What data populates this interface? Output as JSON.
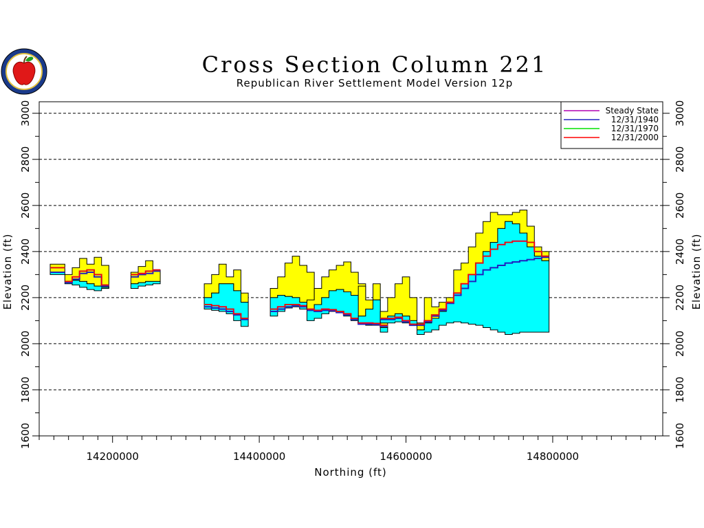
{
  "chart_data": {
    "type": "area",
    "title": "Cross Section  Column  221",
    "subtitle": "Republican  River  Settlement  Model  Version  12p",
    "xlabel": "Northing  (ft)",
    "ylabel": "Elevation  (ft)",
    "ylabel_right": "Elevation  (ft)",
    "xlim": [
      14100000,
      14950000
    ],
    "ylim": [
      1600,
      3050
    ],
    "x_ticks": [
      14200000,
      14400000,
      14600000,
      14800000
    ],
    "x_tick_labels": [
      "14200000",
      "14400000",
      "14600000",
      "14800000"
    ],
    "y_ticks": [
      1600,
      1800,
      2000,
      2200,
      2400,
      2600,
      2800,
      3000
    ],
    "y_tick_labels": [
      "1600",
      "1800",
      "2000",
      "2200",
      "2400",
      "2600",
      "2800",
      "3000"
    ],
    "grid": "horizontal dashed",
    "legend_position": "top-right",
    "colors": {
      "upper_layer": "#ffff00",
      "aquifer": "#00ffff",
      "steady_state": "#b000b0",
      "y1940": "#2020c0",
      "y1970": "#00e000",
      "y2000": "#ff0000"
    },
    "legend": [
      {
        "name": "Steady  State",
        "color": "#b000b0"
      },
      {
        "name": "12/31/1940",
        "color": "#2020c0"
      },
      {
        "name": "12/31/1970",
        "color": "#00e000"
      },
      {
        "name": "12/31/2000",
        "color": "#ff0000"
      }
    ],
    "segments": [
      {
        "x": [
          14120000,
          14130000
        ],
        "top": [
          2345,
          2345
        ],
        "mid": [
          2310,
          2310
        ],
        "bot": [
          2300,
          2300
        ],
        "wl": [
          2330,
          2330
        ],
        "wl1940": [
          2310,
          2310
        ]
      },
      {
        "x": [
          14140000,
          14150000,
          14160000,
          14170000,
          14180000,
          14190000
        ],
        "top": [
          2300,
          2330,
          2370,
          2345,
          2375,
          2340
        ],
        "mid": [
          2270,
          2275,
          2270,
          2260,
          2250,
          2245
        ],
        "bot": [
          2260,
          2255,
          2245,
          2235,
          2230,
          2240
        ],
        "wl": [
          2270,
          2290,
          2315,
          2320,
          2300,
          2255
        ],
        "wl1940": [
          2265,
          2280,
          2305,
          2310,
          2290,
          2250
        ]
      },
      {
        "x": [
          14230000,
          14240000,
          14250000,
          14260000
        ],
        "top": [
          2310,
          2335,
          2360,
          2320
        ],
        "mid": [
          2260,
          2265,
          2270,
          2270
        ],
        "bot": [
          2240,
          2250,
          2255,
          2260
        ],
        "wl": [
          2300,
          2305,
          2315,
          2320
        ],
        "wl1940": [
          2290,
          2300,
          2305,
          2315
        ]
      },
      {
        "x": [
          14330000,
          14340000,
          14350000,
          14360000,
          14370000,
          14380000
        ],
        "top": [
          2260,
          2300,
          2345,
          2290,
          2320,
          2220
        ],
        "mid": [
          2200,
          2220,
          2260,
          2260,
          2230,
          2180
        ],
        "bot": [
          2150,
          2145,
          2140,
          2130,
          2100,
          2075
        ],
        "wl": [
          2170,
          2165,
          2160,
          2150,
          2130,
          2110
        ],
        "wl1940": [
          2160,
          2155,
          2150,
          2140,
          2125,
          2105
        ]
      },
      {
        "x": [
          14420000,
          14430000,
          14440000,
          14450000,
          14460000,
          14470000
        ],
        "top": [
          2240,
          2290,
          2350,
          2380,
          2340,
          2310
        ],
        "mid": [
          2200,
          2210,
          2205,
          2200,
          2180,
          2160
        ],
        "bot": [
          2120,
          2140,
          2155,
          2160,
          2150,
          2140
        ],
        "wl": [
          2150,
          2160,
          2170,
          2170,
          2165,
          2155
        ],
        "wl1940": [
          2140,
          2150,
          2160,
          2165,
          2160,
          2150
        ]
      },
      {
        "x": [
          14470000,
          14480000,
          14490000,
          14500000,
          14510000,
          14520000,
          14530000,
          14540000
        ],
        "top": [
          2190,
          2240,
          2290,
          2320,
          2340,
          2355,
          2310,
          2260
        ],
        "mid": [
          2150,
          2170,
          2200,
          2230,
          2235,
          2225,
          2210,
          2190
        ],
        "bot": [
          2100,
          2110,
          2130,
          2140,
          2135,
          2120,
          2100,
          2090
        ],
        "wl": [
          2150,
          2145,
          2150,
          2148,
          2140,
          2130,
          2110,
          2090
        ],
        "wl1940": [
          2145,
          2140,
          2145,
          2143,
          2135,
          2125,
          2105,
          2085
        ]
      },
      {
        "x": [
          14540000,
          14550000,
          14560000,
          14570000
        ],
        "top": [
          2250,
          2190,
          2260,
          2090
        ],
        "mid": [
          2120,
          2150,
          2190,
          2070
        ],
        "bot": [
          2090,
          2080,
          2080,
          2050
        ],
        "wl": [
          2090,
          2090,
          2088,
          2080
        ],
        "wl1940": [
          2085,
          2085,
          2083,
          2075
        ]
      },
      {
        "x": [
          14570000,
          14580000,
          14590000,
          14600000,
          14610000
        ],
        "top": [
          2140,
          2200,
          2260,
          2290,
          2200
        ],
        "mid": [
          2110,
          2120,
          2130,
          2120,
          2100
        ],
        "bot": [
          2090,
          2090,
          2095,
          2090,
          2080
        ],
        "wl": [
          2110,
          2110,
          2115,
          2100,
          2085
        ],
        "wl1940": [
          2105,
          2105,
          2110,
          2095,
          2080
        ]
      },
      {
        "x": [
          14620000,
          14630000,
          14640000,
          14650000,
          14660000,
          14670000,
          14680000,
          14690000,
          14700000,
          14710000,
          14720000,
          14730000,
          14740000,
          14750000,
          14760000,
          14770000,
          14780000,
          14790000
        ],
        "top": [
          2090,
          2200,
          2160,
          2180,
          2200,
          2320,
          2350,
          2420,
          2480,
          2530,
          2570,
          2560,
          2560,
          2570,
          2580,
          2510,
          2420,
          2400
        ],
        "mid": [
          2060,
          2090,
          2110,
          2140,
          2180,
          2220,
          2260,
          2300,
          2350,
          2400,
          2440,
          2500,
          2530,
          2520,
          2480,
          2420,
          2380,
          2360
        ],
        "bot": [
          2040,
          2050,
          2060,
          2080,
          2090,
          2095,
          2090,
          2085,
          2080,
          2070,
          2060,
          2050,
          2040,
          2045,
          2050,
          2050,
          2050,
          2050
        ],
        "wl": [
          2085,
          2100,
          2125,
          2150,
          2180,
          2220,
          2260,
          2300,
          2350,
          2380,
          2410,
          2430,
          2440,
          2445,
          2445,
          2440,
          2400,
          2380
        ],
        "wl1940": [
          2080,
          2095,
          2120,
          2145,
          2175,
          2210,
          2240,
          2270,
          2300,
          2320,
          2330,
          2340,
          2350,
          2355,
          2360,
          2365,
          2370,
          2375
        ]
      }
    ]
  }
}
